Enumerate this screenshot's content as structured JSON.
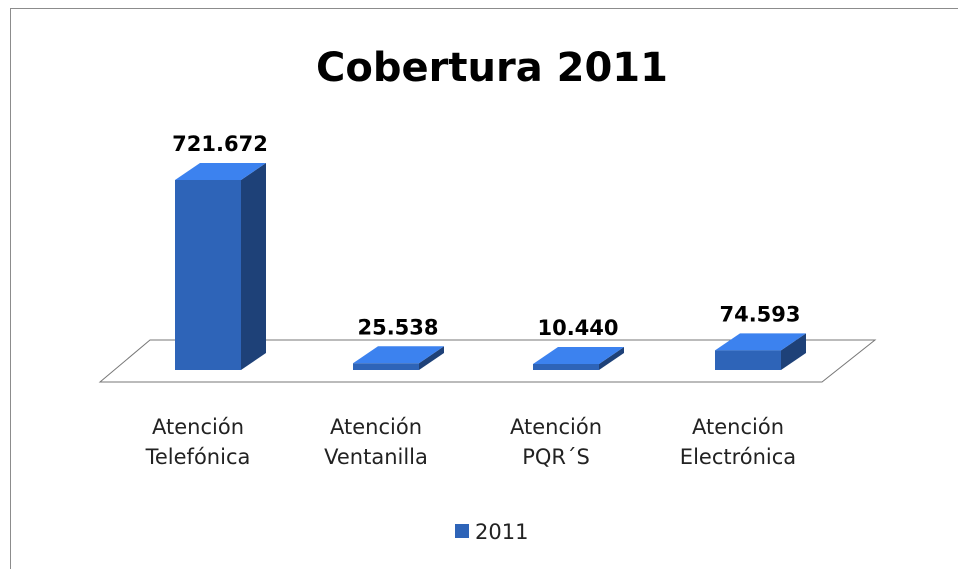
{
  "chart_data": {
    "type": "bar3d",
    "title": "Cobertura 2011",
    "categories": [
      "Atención Telefónica",
      "Atención Ventanilla",
      "Atención PQR´S",
      "Atención Electrónica"
    ],
    "series": [
      {
        "name": "2011",
        "color": "#2e64b8",
        "values": [
          721672,
          25538,
          10440,
          74593
        ],
        "value_labels": [
          "721.672",
          "25.538",
          "10.440",
          "74.593"
        ]
      }
    ],
    "legend": "bottom"
  }
}
